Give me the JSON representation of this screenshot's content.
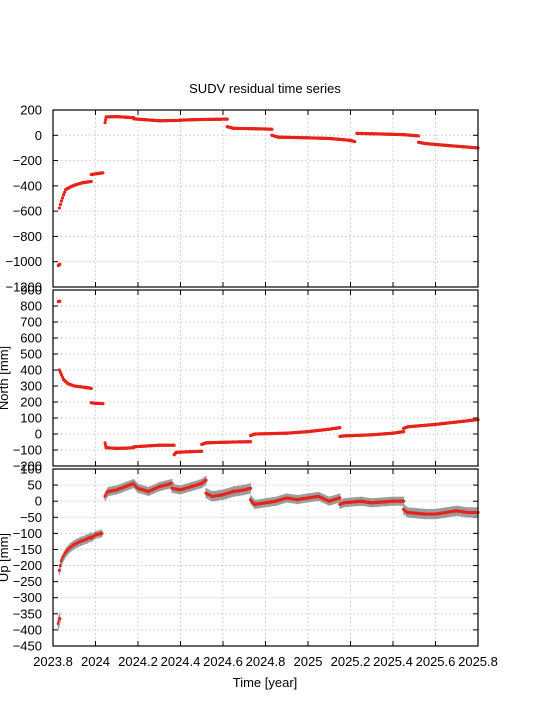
{
  "chart_data": {
    "type": "scatter",
    "title": "SUDV residual time series",
    "xlabel": "Time [year]",
    "x_ticks": [
      "2023.8",
      "2024",
      "2024.2",
      "2024.4",
      "2024.6",
      "2024.8",
      "2025",
      "2025.2",
      "2025.4",
      "2025.6",
      "2025.8"
    ],
    "xlim": [
      2023.8,
      2025.8
    ],
    "grid": true,
    "colors": {
      "points": "#e8231a",
      "errorbars": "#999999",
      "grid": "#c8c8c8"
    },
    "panels": [
      {
        "ylabel": "",
        "ylim": [
          -1200,
          200
        ],
        "y_ticks": [
          200,
          0,
          -200,
          -400,
          -600,
          -800,
          -1000,
          -1200
        ],
        "y_tick_labels": [
          "200",
          "0",
          "−200",
          "−400",
          "−600",
          "−800",
          "−1000",
          "−1200"
        ],
        "segments": [
          {
            "x": [
              2023.825,
              2023.832
            ],
            "y": [
              -1030,
              -1020
            ],
            "err": 6
          },
          {
            "x": [
              2023.83,
              2023.84,
              2023.85,
              2023.86,
              2023.88,
              2023.9,
              2023.92,
              2023.94,
              2023.96,
              2023.98
            ],
            "y": [
              -575,
              -520,
              -470,
              -430,
              -410,
              -395,
              -385,
              -375,
              -370,
              -365
            ],
            "err": 8
          },
          {
            "x": [
              2023.98,
              2024.0,
              2024.02,
              2024.035
            ],
            "y": [
              -310,
              -305,
              -300,
              -297
            ],
            "err": 5
          },
          {
            "x": [
              2024.045,
              2024.05,
              2024.1,
              2024.15,
              2024.18
            ],
            "y": [
              100,
              145,
              148,
              142,
              140
            ],
            "err": 5
          },
          {
            "x": [
              2024.18,
              2024.3,
              2024.4
            ],
            "y": [
              130,
              115,
              118
            ],
            "err": 4
          },
          {
            "x": [
              2024.4,
              2024.5,
              2024.62
            ],
            "y": [
              120,
              125,
              128
            ],
            "err": 4
          },
          {
            "x": [
              2024.62,
              2024.65,
              2024.75,
              2024.83
            ],
            "y": [
              68,
              55,
              52,
              48
            ],
            "err": 4
          },
          {
            "x": [
              2024.83,
              2024.86,
              2024.95,
              2025.0
            ],
            "y": [
              0,
              -15,
              -18,
              -20
            ],
            "err": 4
          },
          {
            "x": [
              2025.0,
              2025.1,
              2025.2,
              2025.22
            ],
            "y": [
              -20,
              -25,
              -40,
              -50
            ],
            "err": 4
          },
          {
            "x": [
              2025.23,
              2025.35,
              2025.45,
              2025.52
            ],
            "y": [
              15,
              10,
              5,
              -5
            ],
            "err": 4
          },
          {
            "x": [
              2025.52,
              2025.55,
              2025.65,
              2025.8
            ],
            "y": [
              -55,
              -65,
              -80,
              -100
            ],
            "err": 4
          }
        ]
      },
      {
        "ylabel": "North [mm]",
        "ylim": [
          -200,
          900
        ],
        "y_ticks": [
          900,
          800,
          700,
          600,
          500,
          400,
          300,
          200,
          100,
          0,
          -100,
          -200
        ],
        "y_tick_labels": [
          "900",
          "800",
          "700",
          "600",
          "500",
          "400",
          "300",
          "200",
          "100",
          "0",
          "−100",
          "−200"
        ],
        "segments": [
          {
            "x": [
              2023.825,
              2023.832
            ],
            "y": [
              828,
              830
            ],
            "err": 6
          },
          {
            "x": [
              2023.83,
              2023.84,
              2023.85,
              2023.87,
              2023.9,
              2023.93,
              2023.96,
              2023.98
            ],
            "y": [
              400,
              370,
              340,
              315,
              300,
              295,
              290,
              285
            ],
            "err": 8
          },
          {
            "x": [
              2023.98,
              2024.0,
              2024.035
            ],
            "y": [
              195,
              192,
              190
            ],
            "err": 5
          },
          {
            "x": [
              2024.045,
              2024.05,
              2024.1,
              2024.15,
              2024.18
            ],
            "y": [
              -55,
              -85,
              -90,
              -88,
              -85
            ],
            "err": 5
          },
          {
            "x": [
              2024.18,
              2024.3,
              2024.37
            ],
            "y": [
              -80,
              -70,
              -70
            ],
            "err": 4
          },
          {
            "x": [
              2024.37,
              2024.38,
              2024.45,
              2024.5
            ],
            "y": [
              -130,
              -115,
              -110,
              -108
            ],
            "err": 5
          },
          {
            "x": [
              2024.5,
              2024.52,
              2024.65,
              2024.73
            ],
            "y": [
              -65,
              -55,
              -50,
              -48
            ],
            "err": 4
          },
          {
            "x": [
              2024.73,
              2024.75,
              2024.9,
              2025.0,
              2025.1,
              2025.15
            ],
            "y": [
              -10,
              0,
              5,
              15,
              30,
              40
            ],
            "err": 4
          },
          {
            "x": [
              2025.15,
              2025.17,
              2025.3,
              2025.4,
              2025.45
            ],
            "y": [
              -15,
              -12,
              -5,
              5,
              15
            ],
            "err": 4
          },
          {
            "x": [
              2025.45,
              2025.47,
              2025.6,
              2025.7,
              2025.8
            ],
            "y": [
              35,
              45,
              60,
              75,
              90
            ],
            "err": 4
          }
        ]
      },
      {
        "ylabel": "Up [mm]",
        "ylim": [
          -450,
          100
        ],
        "y_ticks": [
          100,
          50,
          0,
          -50,
          -100,
          -150,
          -200,
          -250,
          -300,
          -350,
          -400,
          -450
        ],
        "y_tick_labels": [
          "100",
          "50",
          "0",
          "−50",
          "−100",
          "−150",
          "−200",
          "−250",
          "−300",
          "−350",
          "−400",
          "−450"
        ],
        "segments": [
          {
            "x": [
              2023.825,
              2023.832
            ],
            "y": [
              -380,
              -365
            ],
            "err": 20
          },
          {
            "x": [
              2023.83,
              2023.84,
              2023.86,
              2023.88,
              2023.9,
              2023.93,
              2023.96,
              2023.98
            ],
            "y": [
              -215,
              -185,
              -160,
              -145,
              -135,
              -125,
              -118,
              -110
            ],
            "err": 14
          },
          {
            "x": [
              2023.98,
              2024.0,
              2024.03
            ],
            "y": [
              -115,
              -105,
              -100
            ],
            "err": 12
          },
          {
            "x": [
              2024.045,
              2024.06,
              2024.1,
              2024.14,
              2024.18,
              2024.2,
              2024.25,
              2024.3,
              2024.36
            ],
            "y": [
              15,
              30,
              35,
              45,
              55,
              40,
              30,
              45,
              55
            ],
            "err": 14
          },
          {
            "x": [
              2024.36,
              2024.4,
              2024.45,
              2024.5,
              2024.52
            ],
            "y": [
              40,
              35,
              45,
              55,
              65
            ],
            "err": 14
          },
          {
            "x": [
              2024.52,
              2024.55,
              2024.6,
              2024.65,
              2024.7,
              2024.73
            ],
            "y": [
              25,
              15,
              20,
              30,
              35,
              40
            ],
            "err": 16
          },
          {
            "x": [
              2024.73,
              2024.75,
              2024.8,
              2024.85,
              2024.9,
              2024.95,
              2025.0,
              2025.05,
              2025.1,
              2025.15
            ],
            "y": [
              5,
              -10,
              -5,
              0,
              10,
              5,
              10,
              15,
              0,
              10
            ],
            "err": 14
          },
          {
            "x": [
              2025.15,
              2025.17,
              2025.25,
              2025.3,
              2025.4,
              2025.45
            ],
            "y": [
              -10,
              -5,
              0,
              -5,
              0,
              0
            ],
            "err": 14
          },
          {
            "x": [
              2025.45,
              2025.47,
              2025.55,
              2025.6,
              2025.65,
              2025.7,
              2025.75,
              2025.8
            ],
            "y": [
              -25,
              -35,
              -40,
              -40,
              -35,
              -30,
              -35,
              -35
            ],
            "err": 16
          }
        ]
      }
    ]
  }
}
